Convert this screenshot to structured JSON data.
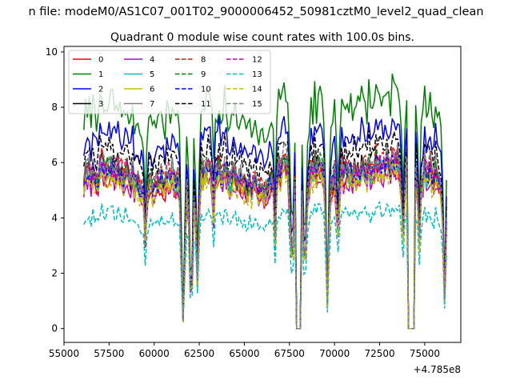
{
  "figure": {
    "suptitle": "n file: modeM0/AS1C07_001T02_9000006452_50981cztM0_level2_quad_clean",
    "offset_label": "+4.785e8"
  },
  "chart_data": {
    "type": "line",
    "title": "Quadrant 0 module wise count rates with 100.0s bins.",
    "xlabel": "",
    "ylabel": "",
    "xlim": [
      55000,
      77000
    ],
    "ylim": [
      -0.5,
      10.2
    ],
    "x_offset": 478500000,
    "x_ticks": [
      55000,
      57500,
      60000,
      62500,
      65000,
      67500,
      70000,
      72500,
      75000
    ],
    "x_tick_labels": [
      "55000",
      "57500",
      "60000",
      "62500",
      "65000",
      "67500",
      "70000",
      "72500",
      "75000"
    ],
    "y_ticks": [
      0,
      2,
      4,
      6,
      8,
      10
    ],
    "y_tick_labels": [
      "0",
      "2",
      "4",
      "6",
      "8",
      "10"
    ],
    "grid": false,
    "legend": {
      "placement": "top-left",
      "columns": 4
    },
    "x_range": [
      56100,
      76200
    ],
    "gaps": [
      [
        67900,
        68100
      ],
      [
        74100,
        74400
      ]
    ],
    "dips": [
      {
        "x": 61600,
        "depth": 0.95,
        "width": 120
      },
      {
        "x": 62050,
        "depth": 0.85,
        "width": 120
      },
      {
        "x": 62400,
        "depth": 0.7,
        "width": 100
      },
      {
        "x": 59500,
        "depth": 0.4,
        "width": 80
      },
      {
        "x": 63300,
        "depth": 0.3,
        "width": 80
      },
      {
        "x": 66700,
        "depth": 0.45,
        "width": 90
      },
      {
        "x": 67650,
        "depth": 0.6,
        "width": 150
      },
      {
        "x": 68350,
        "depth": 0.6,
        "width": 150
      },
      {
        "x": 69600,
        "depth": 0.85,
        "width": 100
      },
      {
        "x": 70200,
        "depth": 0.3,
        "width": 100
      },
      {
        "x": 73800,
        "depth": 0.4,
        "width": 100
      },
      {
        "x": 74700,
        "depth": 0.45,
        "width": 100
      },
      {
        "x": 76100,
        "depth": 0.8,
        "width": 100
      }
    ],
    "series": [
      {
        "name": "0",
        "color": "#ff0000",
        "dash": "solid",
        "level": 5.1
      },
      {
        "name": "1",
        "color": "#008000",
        "dash": "solid",
        "level": 7.6
      },
      {
        "name": "2",
        "color": "#0000ff",
        "dash": "solid",
        "level": 6.6
      },
      {
        "name": "3",
        "color": "#000000",
        "dash": "solid",
        "level": 5.4
      },
      {
        "name": "4",
        "color": "#bf00bf",
        "dash": "solid",
        "level": 5.0
      },
      {
        "name": "5",
        "color": "#00bfbf",
        "dash": "solid",
        "level": 5.3
      },
      {
        "name": "6",
        "color": "#bfbf00",
        "dash": "solid",
        "level": 5.2
      },
      {
        "name": "7",
        "color": "#808080",
        "dash": "solid",
        "level": 5.5
      },
      {
        "name": "8",
        "color": "#ff0000",
        "dash": "dashed",
        "level": 5.6
      },
      {
        "name": "9",
        "color": "#008000",
        "dash": "dashed",
        "level": 5.5
      },
      {
        "name": "10",
        "color": "#0000ff",
        "dash": "dashed",
        "level": 5.4
      },
      {
        "name": "11",
        "color": "#000000",
        "dash": "dashed",
        "level": 6.1
      },
      {
        "name": "12",
        "color": "#bf00bf",
        "dash": "dashed",
        "level": 5.4
      },
      {
        "name": "13",
        "color": "#00bfbf",
        "dash": "dashed",
        "level": 3.9
      },
      {
        "name": "14",
        "color": "#bfbf00",
        "dash": "dashed",
        "level": 5.0
      },
      {
        "name": "15",
        "color": "#808080",
        "dash": "dashed",
        "level": 5.6
      }
    ]
  }
}
